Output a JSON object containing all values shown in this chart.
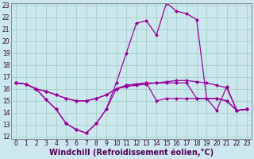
{
  "xlabel": "Windchill (Refroidissement éolien,°C)",
  "x": [
    0,
    1,
    2,
    3,
    4,
    5,
    6,
    7,
    8,
    9,
    10,
    11,
    12,
    13,
    14,
    15,
    16,
    17,
    18,
    19,
    20,
    21,
    22,
    23
  ],
  "series": [
    [
      16.5,
      16.4,
      16.0,
      15.8,
      15.5,
      15.2,
      15.0,
      15.0,
      15.2,
      15.5,
      16.0,
      16.2,
      16.3,
      16.4,
      16.5,
      16.6,
      16.7,
      16.7,
      16.6,
      16.5,
      16.3,
      16.1,
      14.2,
      14.3
    ],
    [
      16.5,
      16.4,
      16.0,
      15.8,
      15.5,
      15.2,
      15.0,
      15.0,
      15.2,
      15.5,
      16.0,
      16.3,
      16.4,
      16.5,
      16.5,
      16.5,
      16.5,
      16.5,
      15.2,
      15.2,
      15.2,
      15.0,
      14.2,
      14.3
    ],
    [
      16.5,
      16.4,
      16.0,
      15.1,
      14.3,
      13.1,
      12.6,
      12.3,
      13.1,
      14.3,
      16.0,
      16.3,
      16.4,
      16.5,
      15.0,
      15.2,
      15.2,
      15.2,
      15.2,
      15.2,
      14.2,
      16.2,
      14.2,
      14.3
    ],
    [
      16.5,
      16.4,
      16.0,
      15.1,
      14.3,
      13.1,
      12.6,
      12.3,
      13.1,
      14.3,
      16.5,
      19.0,
      21.5,
      21.7,
      20.5,
      23.2,
      22.5,
      22.3,
      21.8,
      15.2,
      15.2,
      15.0,
      14.2,
      14.3
    ]
  ],
  "line_color": "#990099",
  "marker": "D",
  "markersize": 2.0,
  "linewidth": 0.9,
  "background_color": "#cce8ee",
  "grid_color": "#99ccbb",
  "ylim": [
    12,
    23
  ],
  "xlim": [
    -0.5,
    23.5
  ],
  "yticks": [
    12,
    13,
    14,
    15,
    16,
    17,
    18,
    19,
    20,
    21,
    22,
    23
  ],
  "xticks": [
    0,
    1,
    2,
    3,
    4,
    5,
    6,
    7,
    8,
    9,
    10,
    11,
    12,
    13,
    14,
    15,
    16,
    17,
    18,
    19,
    20,
    21,
    22,
    23
  ],
  "tick_fontsize": 5.5,
  "xlabel_fontsize": 7.0
}
